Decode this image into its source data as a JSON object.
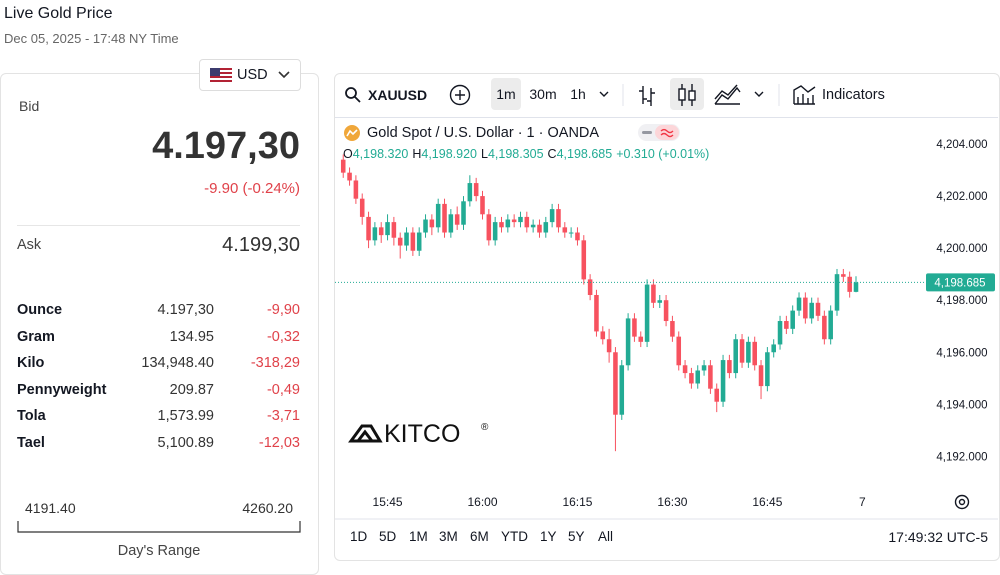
{
  "header": {
    "title": "Live Gold Price",
    "subtitle": "Dec 05, 2025 - 17:48 NY Time"
  },
  "currency": "USD",
  "quote": {
    "bid_label": "Bid",
    "bid": "4.197,30",
    "change": "-9.90 (-0.24%)",
    "ask_label": "Ask",
    "ask": "4.199,30"
  },
  "table": {
    "rows": [
      [
        "Ounce",
        "4.197,30",
        "-9,90"
      ],
      [
        "Gram",
        "134.95",
        "-0,32"
      ],
      [
        "Kilo",
        "134,948.40",
        "-318,29"
      ],
      [
        "Pennyweight",
        "209.87",
        "-0,49"
      ],
      [
        "Tola",
        "1,573.99",
        "-3,71"
      ],
      [
        "Tael",
        "5,100.89",
        "-12,03"
      ]
    ]
  },
  "range": {
    "low": "4191.40",
    "high": "4260.20",
    "label": "Day's Range"
  },
  "toolbar": {
    "symbol": "XAUUSD",
    "intervals": [
      "1m",
      "30m",
      "1h"
    ],
    "indicators": "Indicators"
  },
  "chart_data": {
    "type": "candlestick",
    "title": "Gold Spot / U.S. Dollar · 1 · OANDA",
    "legend": [
      {
        "key": "O",
        "value": "4,198.320"
      },
      {
        "key": "H",
        "value": "4,198.920"
      },
      {
        "key": "L",
        "value": "4,198.305"
      },
      {
        "key": "C",
        "value": "4,198.685"
      }
    ],
    "change": "+0.310 (+0.01%)",
    "watermark": "KITCO",
    "watermark_symbol": "®",
    "up_color": "#22ab94",
    "down_color": "#f7525f",
    "open": [
      4203.4,
      4202.9,
      4202.6,
      4201.9,
      4201.2,
      4200.3,
      4200.8,
      4200.5,
      4201.0,
      4200.4,
      4200.1,
      4200.6,
      4199.9,
      4200.6,
      4201.1,
      4200.8,
      4201.7,
      4200.6,
      4201.3,
      4200.9,
      4201.8,
      4202.5,
      4202.0,
      4201.3,
      4200.3,
      4201.0,
      4200.8,
      4201.1,
      4201.0,
      4201.2,
      4200.8,
      4200.9,
      4200.6,
      4201.0,
      4201.5,
      4200.8,
      4200.6,
      4200.6,
      4200.3,
      4198.8,
      4198.2,
      4196.8,
      4196.5,
      4196.0,
      4193.6,
      4195.5,
      4197.3,
      4196.6,
      4196.4,
      4198.6,
      4197.9,
      4198.0,
      4197.2,
      4196.6,
      4195.5,
      4195.2,
      4194.8,
      4195.3,
      4195.5,
      4194.6,
      4194.1,
      4195.7,
      4195.2,
      4196.5,
      4195.6,
      4196.4,
      4195.5,
      4194.7,
      4196.0,
      4196.3,
      4197.2,
      4196.9,
      4197.6,
      4198.1,
      4197.3,
      4197.9,
      4197.4,
      4196.5,
      4197.6,
      4199.0,
      4198.9,
      4198.32
    ],
    "high": [
      4203.6,
      4203.1,
      4202.8,
      4202.1,
      4201.4,
      4201.0,
      4201.0,
      4201.3,
      4201.2,
      4200.6,
      4200.8,
      4200.8,
      4200.8,
      4201.3,
      4201.3,
      4201.9,
      4201.9,
      4201.5,
      4201.6,
      4202.0,
      4202.8,
      4202.7,
      4202.2,
      4201.5,
      4201.2,
      4201.2,
      4201.3,
      4201.3,
      4201.4,
      4201.4,
      4201.1,
      4201.1,
      4201.2,
      4201.7,
      4201.7,
      4201.0,
      4200.8,
      4200.8,
      4200.5,
      4199.0,
      4198.4,
      4197.0,
      4196.9,
      4196.2,
      4195.7,
      4197.5,
      4197.5,
      4196.8,
      4198.8,
      4198.8,
      4198.2,
      4198.2,
      4197.4,
      4196.8,
      4195.7,
      4195.4,
      4195.5,
      4195.7,
      4195.7,
      4194.8,
      4195.9,
      4195.9,
      4196.7,
      4196.7,
      4196.6,
      4196.6,
      4195.7,
      4196.2,
      4196.5,
      4197.4,
      4197.4,
      4197.8,
      4198.3,
      4198.3,
      4198.1,
      4198.1,
      4197.6,
      4197.8,
      4199.2,
      4199.2,
      4199.1,
      4198.92
    ],
    "low": [
      4202.7,
      4202.4,
      4201.7,
      4200.9,
      4200.0,
      4200.1,
      4200.2,
      4200.3,
      4200.1,
      4199.6,
      4199.9,
      4199.7,
      4199.7,
      4200.4,
      4200.5,
      4200.6,
      4200.4,
      4200.4,
      4200.7,
      4200.7,
      4201.6,
      4201.8,
      4201.1,
      4200.1,
      4200.1,
      4200.6,
      4200.6,
      4200.8,
      4200.8,
      4200.6,
      4200.6,
      4200.4,
      4200.4,
      4200.8,
      4200.6,
      4200.4,
      4200.4,
      4200.1,
      4198.6,
      4198.0,
      4196.6,
      4196.3,
      4195.6,
      4192.2,
      4193.4,
      4195.3,
      4196.4,
      4196.2,
      4196.2,
      4197.7,
      4197.7,
      4197.0,
      4196.4,
      4195.3,
      4195.0,
      4194.6,
      4194.6,
      4195.1,
      4194.4,
      4193.7,
      4193.9,
      4195.0,
      4195.0,
      4195.4,
      4195.4,
      4195.3,
      4194.2,
      4194.5,
      4195.8,
      4196.1,
      4196.7,
      4196.7,
      4197.4,
      4197.1,
      4197.1,
      4197.2,
      4196.3,
      4196.3,
      4197.4,
      4198.7,
      4198.1,
      4198.305
    ],
    "close": [
      4202.9,
      4202.6,
      4201.9,
      4201.2,
      4200.3,
      4200.8,
      4200.5,
      4201.0,
      4200.4,
      4200.1,
      4200.6,
      4199.9,
      4200.6,
      4201.1,
      4200.8,
      4201.7,
      4200.6,
      4201.3,
      4200.9,
      4201.8,
      4202.5,
      4202.0,
      4201.3,
      4200.3,
      4201.0,
      4200.8,
      4201.1,
      4201.0,
      4201.2,
      4200.8,
      4200.9,
      4200.6,
      4201.0,
      4201.5,
      4200.8,
      4200.6,
      4200.6,
      4200.3,
      4198.8,
      4198.2,
      4196.8,
      4196.5,
      4196.0,
      4193.6,
      4195.5,
      4197.3,
      4196.6,
      4196.4,
      4198.6,
      4197.9,
      4198.0,
      4197.2,
      4196.6,
      4195.5,
      4195.2,
      4194.8,
      4195.3,
      4195.5,
      4194.6,
      4194.1,
      4195.7,
      4195.2,
      4196.5,
      4195.6,
      4196.4,
      4195.5,
      4194.7,
      4196.0,
      4196.3,
      4197.2,
      4196.9,
      4197.6,
      4198.1,
      4197.3,
      4197.9,
      4197.4,
      4196.5,
      4197.6,
      4199.0,
      4198.9,
      4198.32,
      4198.685
    ],
    "xlim": [
      -1.3,
      91.9
    ],
    "xticks": [
      {
        "value": 7,
        "label": "15:45"
      },
      {
        "value": 22,
        "label": "16:00"
      },
      {
        "value": 37,
        "label": "16:15"
      },
      {
        "value": 52,
        "label": "16:30"
      },
      {
        "value": 67,
        "label": "16:45"
      },
      {
        "value": 82,
        "label": "7"
      }
    ],
    "ylim": [
      4190.9,
      4205.0
    ],
    "yticks": [
      {
        "value": 4192,
        "label": "4,192.000"
      },
      {
        "value": 4194,
        "label": "4,194.000"
      },
      {
        "value": 4196,
        "label": "4,196.000"
      },
      {
        "value": 4198,
        "label": "4,198.000"
      },
      {
        "value": 4200,
        "label": "4,200.000"
      },
      {
        "value": 4202,
        "label": "4,202.000"
      },
      {
        "value": 4204,
        "label": "4,204.000"
      }
    ],
    "last_price": {
      "value": 4198.685,
      "label": "4,198.685"
    }
  },
  "ranges": [
    "1D",
    "5D",
    "1M",
    "3M",
    "6M",
    "YTD",
    "1Y",
    "5Y",
    "All"
  ],
  "clock": "17:49:32 UTC-5"
}
